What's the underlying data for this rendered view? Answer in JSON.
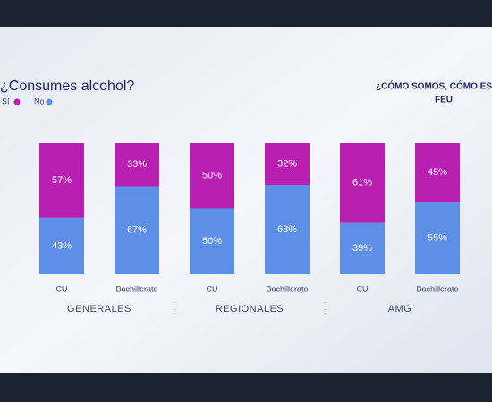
{
  "chart_data": {
    "type": "stacked_bar",
    "title": "¿Consumes alcohol?",
    "logo_text": "¿CÓMO SOMOS, CÓMO ESTAMOS?",
    "logo_org": "FEU",
    "categories": [
      "CU",
      "Bachillerato",
      "CU",
      "Bachillerato",
      "CU",
      "Bachillerato"
    ],
    "groups": [
      "GENERALES",
      "REGIONALES",
      "AMG"
    ],
    "ylim": [
      0,
      100
    ],
    "series": [
      {
        "name": "Sí",
        "color": "#b81fb0",
        "values": [
          57,
          33,
          50,
          32,
          61,
          45
        ],
        "value_labels": [
          "57%",
          "33%",
          "50%",
          "32%",
          "61%",
          "45%"
        ]
      },
      {
        "name": "No",
        "color": "#5e8fe6",
        "values": [
          43,
          67,
          50,
          68,
          39,
          55
        ],
        "value_labels": [
          "43%",
          "67%",
          "50%",
          "68%",
          "39%",
          "55%"
        ]
      }
    ]
  }
}
